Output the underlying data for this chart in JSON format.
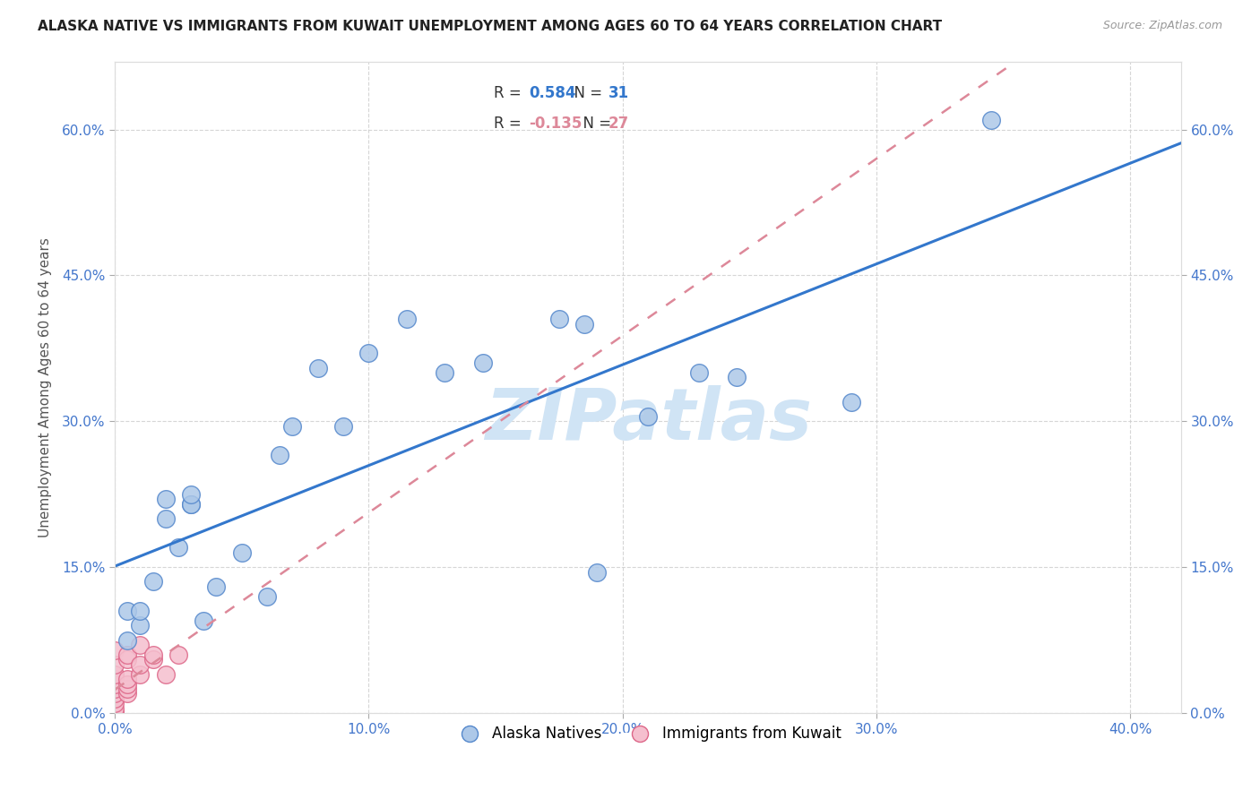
{
  "title": "ALASKA NATIVE VS IMMIGRANTS FROM KUWAIT UNEMPLOYMENT AMONG AGES 60 TO 64 YEARS CORRELATION CHART",
  "source": "Source: ZipAtlas.com",
  "ylabel": "Unemployment Among Ages 60 to 64 years",
  "xlim": [
    0.0,
    0.42
  ],
  "ylim": [
    0.0,
    0.67
  ],
  "alaska_native_x": [
    0.005,
    0.005,
    0.01,
    0.01,
    0.015,
    0.02,
    0.02,
    0.025,
    0.03,
    0.03,
    0.03,
    0.035,
    0.04,
    0.05,
    0.06,
    0.065,
    0.07,
    0.08,
    0.09,
    0.1,
    0.115,
    0.13,
    0.145,
    0.175,
    0.185,
    0.19,
    0.21,
    0.23,
    0.245,
    0.29,
    0.345
  ],
  "alaska_native_y": [
    0.075,
    0.105,
    0.09,
    0.105,
    0.135,
    0.2,
    0.22,
    0.17,
    0.215,
    0.215,
    0.225,
    0.095,
    0.13,
    0.165,
    0.12,
    0.265,
    0.295,
    0.355,
    0.295,
    0.37,
    0.405,
    0.35,
    0.36,
    0.405,
    0.4,
    0.145,
    0.305,
    0.35,
    0.345,
    0.32,
    0.61
  ],
  "kuwait_x": [
    0.0,
    0.0,
    0.0,
    0.0,
    0.0,
    0.0,
    0.0,
    0.0,
    0.0,
    0.0,
    0.0,
    0.0,
    0.0,
    0.0,
    0.005,
    0.005,
    0.005,
    0.005,
    0.005,
    0.005,
    0.01,
    0.01,
    0.01,
    0.015,
    0.015,
    0.02,
    0.025
  ],
  "kuwait_y": [
    0.0,
    0.0,
    0.0,
    0.0,
    0.005,
    0.01,
    0.015,
    0.02,
    0.025,
    0.03,
    0.035,
    0.04,
    0.05,
    0.065,
    0.02,
    0.025,
    0.03,
    0.035,
    0.055,
    0.06,
    0.04,
    0.05,
    0.07,
    0.055,
    0.06,
    0.04,
    0.06
  ],
  "R_alaska": 0.584,
  "N_alaska": 31,
  "R_kuwait": -0.135,
  "N_kuwait": 27,
  "alaska_color": "#adc8e8",
  "alaska_edge_color": "#5588cc",
  "kuwait_color": "#f5bfce",
  "kuwait_edge_color": "#dd6688",
  "trend_alaska_color": "#3377cc",
  "trend_kuwait_color": "#dd8899",
  "watermark_color": "#d0e4f5",
  "watermark_text": "ZIPatlas",
  "background_color": "#ffffff",
  "grid_color": "#cccccc",
  "title_color": "#222222",
  "label_color": "#555555",
  "tick_color": "#4477cc"
}
